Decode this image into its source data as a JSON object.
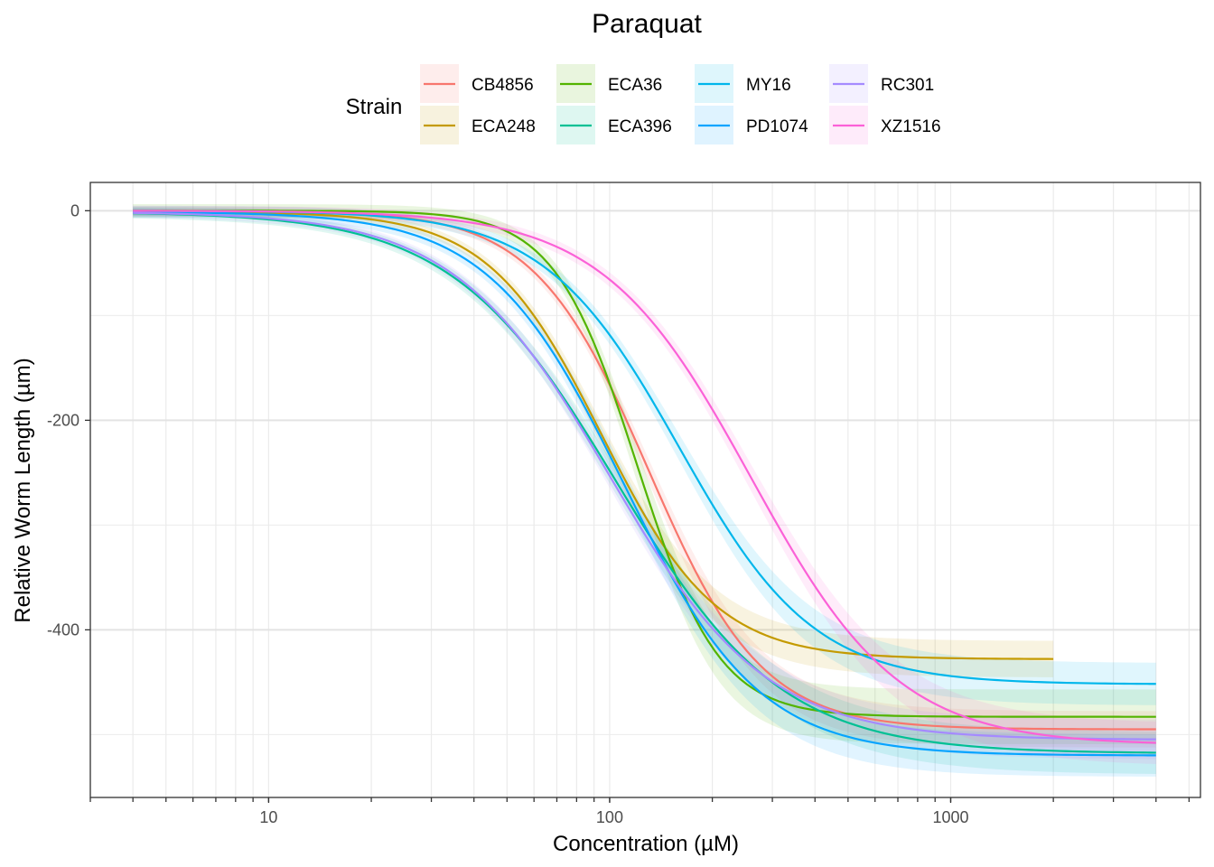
{
  "chart_data": {
    "type": "line",
    "title": "Paraquat",
    "xlabel": "Concentration (µM)",
    "ylabel": "Relative Worm Length (µm)",
    "x_scale": "log10",
    "xlim": [
      3,
      5400
    ],
    "ylim": [
      -560,
      27
    ],
    "x_ticks": [
      {
        "value": 10,
        "label": "10"
      },
      {
        "value": 100,
        "label": "100"
      },
      {
        "value": 1000,
        "label": "1000"
      }
    ],
    "y_ticks": [
      {
        "value": 0,
        "label": "0"
      },
      {
        "value": -200,
        "label": "-200"
      },
      {
        "value": -400,
        "label": "-400"
      }
    ],
    "y_minor_ticks": [
      -100,
      -300,
      -500
    ],
    "grid": true,
    "legend": {
      "title": "Strain",
      "position": "top"
    },
    "curve_model": "log-logistic: y = top + (bottom - top) / (1 + (ec50 / x)^hill)",
    "series": [
      {
        "name": "CB4856",
        "color": "#F8766D",
        "top": 0,
        "bottom": -495,
        "ec50": 130,
        "hill": 2.6,
        "band": 12,
        "x_range": [
          4,
          4000
        ]
      },
      {
        "name": "ECA248",
        "color": "#C49A00",
        "top": -1,
        "bottom": -428,
        "ec50": 95,
        "hill": 2.6,
        "band": 12,
        "x_range": [
          4,
          2000
        ]
      },
      {
        "name": "ECA36",
        "color": "#53B400",
        "top": 0,
        "bottom": -483,
        "ec50": 120,
        "hill": 3.6,
        "band": 18,
        "x_range": [
          4,
          4000
        ]
      },
      {
        "name": "ECA396",
        "color": "#00C094",
        "top": -1,
        "bottom": -518,
        "ec50": 105,
        "hill": 1.8,
        "band": 14,
        "x_range": [
          4,
          4000
        ]
      },
      {
        "name": "MY16",
        "color": "#00B6EB",
        "top": 0,
        "bottom": -452,
        "ec50": 160,
        "hill": 2.2,
        "band": 14,
        "x_range": [
          4,
          4000
        ]
      },
      {
        "name": "PD1074",
        "color": "#06A4FF",
        "top": -1,
        "bottom": -520,
        "ec50": 110,
        "hill": 2.2,
        "band": 14,
        "x_range": [
          4,
          4000
        ]
      },
      {
        "name": "RC301",
        "color": "#A58AFF",
        "top": -1,
        "bottom": -505,
        "ec50": 100,
        "hill": 1.9,
        "band": 13,
        "x_range": [
          4,
          4000
        ]
      },
      {
        "name": "XZ1516",
        "color": "#FB61D7",
        "top": 0,
        "bottom": -510,
        "ec50": 260,
        "hill": 2.0,
        "band": 14,
        "x_range": [
          4,
          4000
        ]
      }
    ],
    "legend_layout": [
      [
        "CB4856",
        "ECA36",
        "MY16",
        "RC301"
      ],
      [
        "ECA248",
        "ECA396",
        "PD1074",
        "XZ1516"
      ]
    ]
  }
}
